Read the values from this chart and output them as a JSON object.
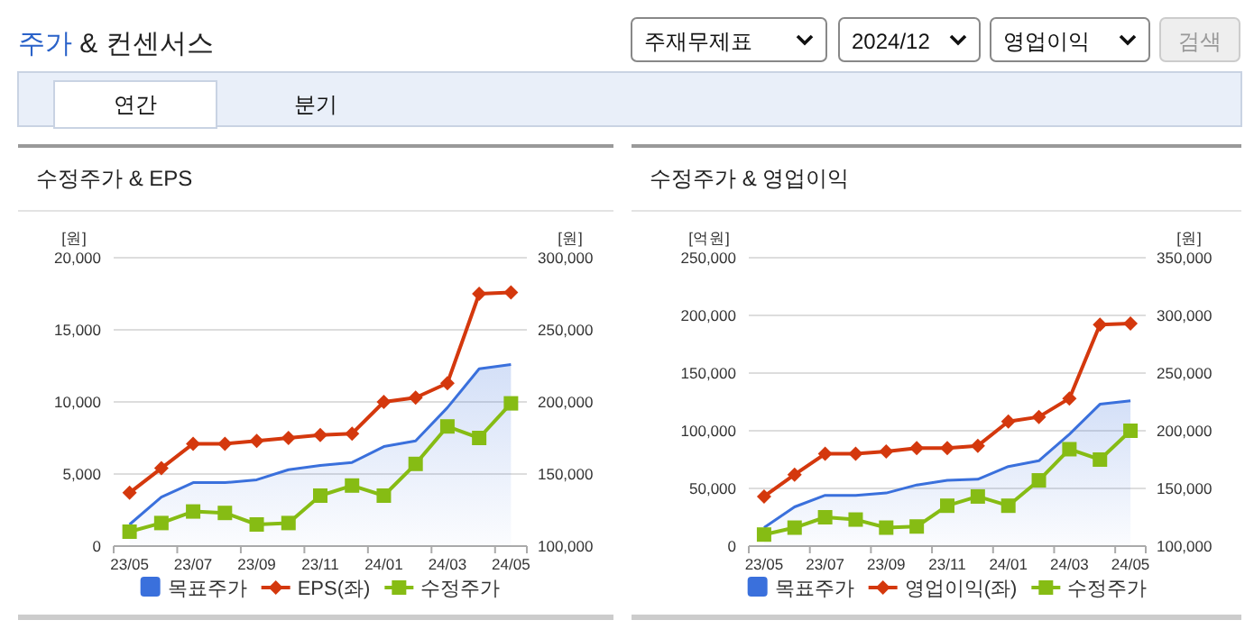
{
  "chart_data": [
    {
      "type": "other",
      "title": "주가 & 컨센서스",
      "annotations": [
        "주재무제표",
        "2024/12",
        "영업이익",
        "검색",
        "연간",
        "분기"
      ]
    },
    {
      "type": "line",
      "title": "수정주가 & EPS",
      "ylabel": "[원]",
      "y2label": "[원]",
      "categories": [
        "23/05",
        null,
        "23/07",
        null,
        "23/09",
        null,
        "23/11",
        null,
        "24/01",
        null,
        "24/03",
        null,
        "24/05"
      ],
      "ylim": [
        0,
        20000
      ],
      "yticks": [
        {
          "value": 0,
          "label": "0"
        },
        {
          "value": 5000,
          "label": "5,000"
        },
        {
          "value": 10000,
          "label": "10,000"
        },
        {
          "value": 15000,
          "label": "15,000"
        },
        {
          "value": 20000,
          "label": "20,000"
        }
      ],
      "y2lim": [
        100000,
        300000
      ],
      "y2ticks": [
        {
          "value": 100000,
          "label": "100,000"
        },
        {
          "value": 150000,
          "label": "150,000"
        },
        {
          "value": 200000,
          "label": "200,000"
        },
        {
          "value": 250000,
          "label": "250,000"
        },
        {
          "value": 300000,
          "label": "300,000"
        }
      ],
      "grid": "y",
      "legend": "bottom",
      "series": [
        {
          "name": "목표주가",
          "type": "area",
          "axis": "y2",
          "color": "#3a70dc",
          "marker": "none",
          "values": [
            115000,
            134000,
            144000,
            144000,
            146000,
            153000,
            156000,
            158000,
            169000,
            173000,
            196000,
            223000,
            226000
          ]
        },
        {
          "name": "EPS(좌)",
          "type": "line",
          "color": "#d4380d",
          "marker": "diamond",
          "values": [
            3700,
            5400,
            7100,
            7100,
            7300,
            7500,
            7700,
            7800,
            10000,
            10300,
            11300,
            17500,
            17600
          ]
        },
        {
          "name": "수정주가",
          "type": "line",
          "axis": "y2",
          "color": "#86bc14",
          "marker": "square",
          "values": [
            110000,
            116000,
            124000,
            123000,
            115000,
            116000,
            135000,
            142000,
            135000,
            157000,
            183000,
            175000,
            199000
          ]
        }
      ]
    },
    {
      "type": "line",
      "title": "수정주가 & 영업이익",
      "ylabel": "[억원]",
      "y2label": "[원]",
      "categories": [
        "23/05",
        null,
        "23/07",
        null,
        "23/09",
        null,
        "23/11",
        null,
        "24/01",
        null,
        "24/03",
        null,
        "24/05"
      ],
      "ylim": [
        0,
        250000
      ],
      "yticks": [
        {
          "value": 0,
          "label": "0"
        },
        {
          "value": 50000,
          "label": "50,000"
        },
        {
          "value": 100000,
          "label": "100,000"
        },
        {
          "value": 150000,
          "label": "150,000"
        },
        {
          "value": 200000,
          "label": "200,000"
        },
        {
          "value": 250000,
          "label": "250,000"
        }
      ],
      "y2lim": [
        100000,
        350000
      ],
      "y2ticks": [
        {
          "value": 100000,
          "label": "100,000"
        },
        {
          "value": 150000,
          "label": "150,000"
        },
        {
          "value": 200000,
          "label": "200,000"
        },
        {
          "value": 250000,
          "label": "250,000"
        },
        {
          "value": 300000,
          "label": "300,000"
        },
        {
          "value": 350000,
          "label": "350,000"
        }
      ],
      "grid": "y",
      "legend": "bottom",
      "series": [
        {
          "name": "목표주가",
          "type": "area",
          "axis": "y2",
          "color": "#3a70dc",
          "marker": "none",
          "values": [
            116000,
            134000,
            144000,
            144000,
            146000,
            153000,
            157000,
            158000,
            169000,
            174000,
            197000,
            223000,
            226000
          ]
        },
        {
          "name": "영업이익(좌)",
          "type": "line",
          "color": "#d4380d",
          "marker": "diamond",
          "values": [
            43000,
            62000,
            80000,
            80000,
            82000,
            85000,
            85000,
            87000,
            108000,
            112000,
            128000,
            192000,
            193000
          ]
        },
        {
          "name": "수정주가",
          "type": "line",
          "axis": "y2",
          "color": "#86bc14",
          "marker": "square",
          "values": [
            110000,
            116000,
            125000,
            123000,
            116000,
            117000,
            135000,
            143000,
            135000,
            157000,
            184000,
            175000,
            200000
          ]
        }
      ]
    }
  ]
}
